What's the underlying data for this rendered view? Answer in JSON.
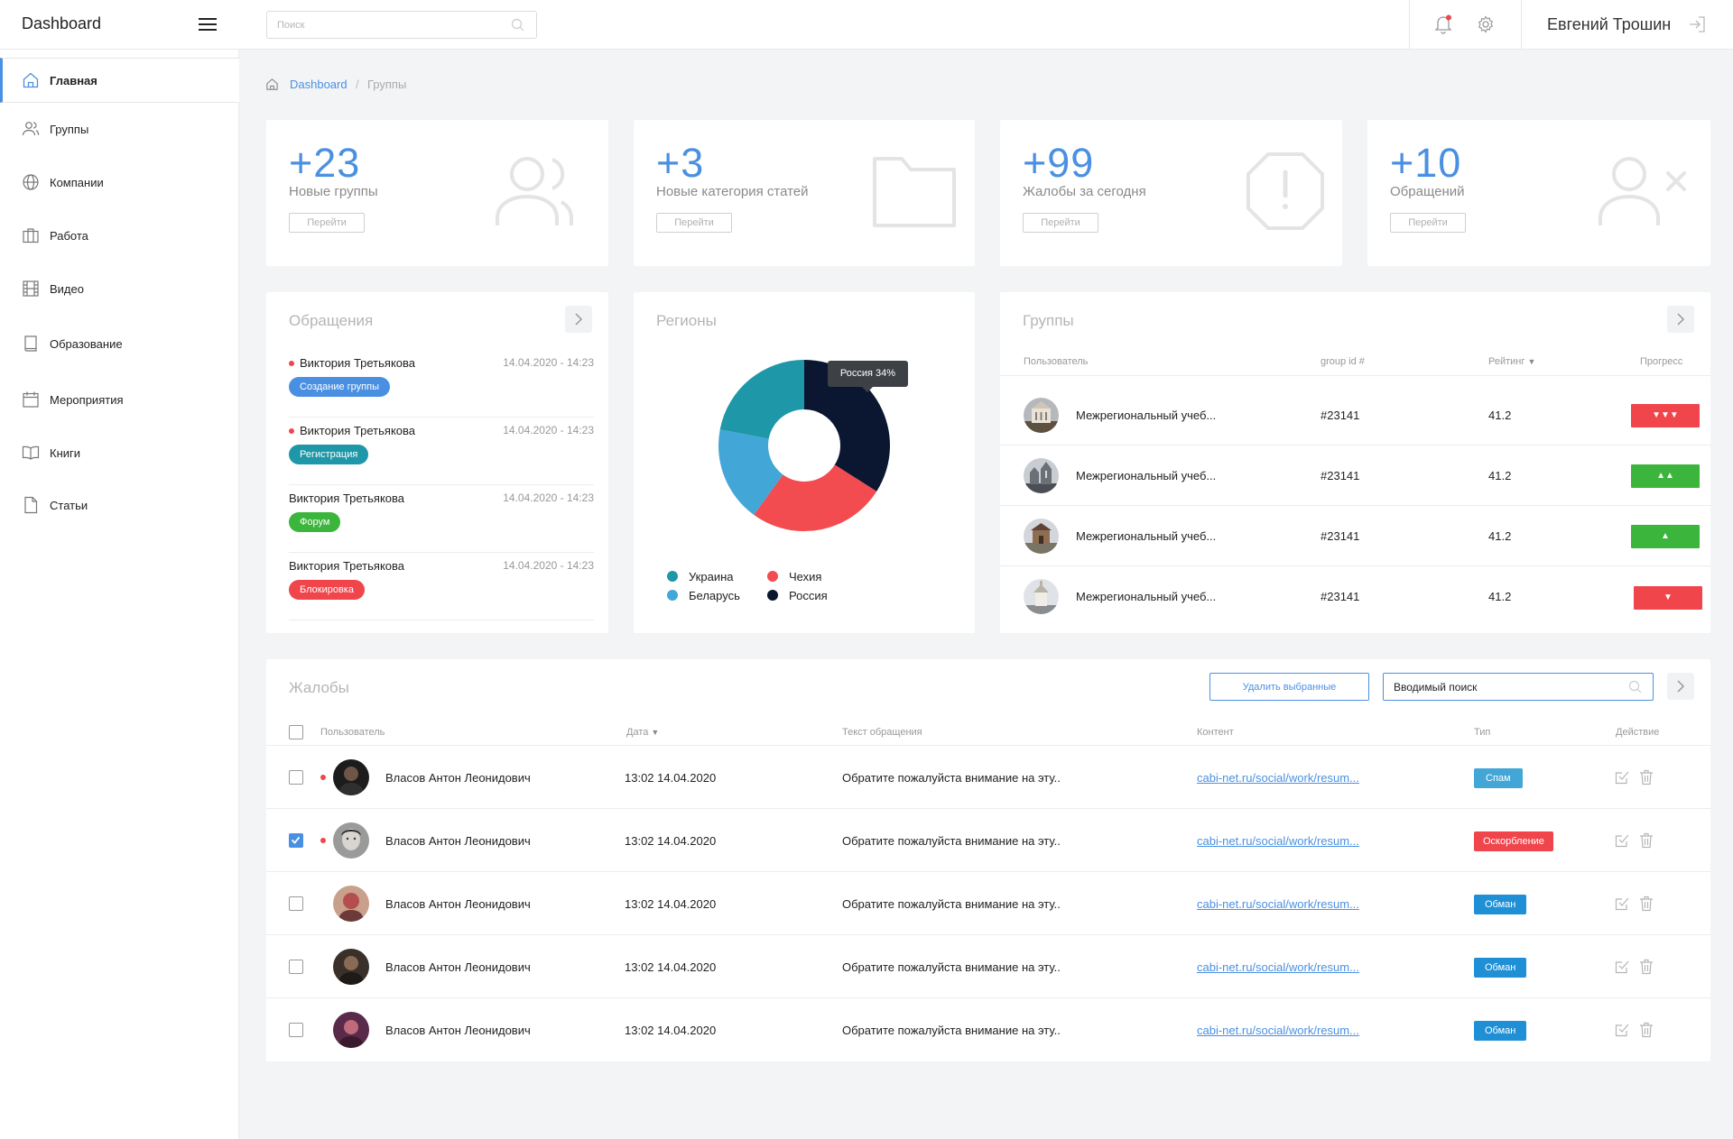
{
  "app": {
    "title": "Dashboard"
  },
  "header": {
    "search_placeholder": "Поиск",
    "user_name": "Евгений Трошин",
    "icons": [
      "menu-icon",
      "search-icon",
      "bell-icon",
      "gear-icon",
      "logout-icon"
    ],
    "notification_color": "#f0454b"
  },
  "sidebar": {
    "items": [
      {
        "label": "Главная",
        "icon": "home-icon",
        "active": true
      },
      {
        "label": "Группы",
        "icon": "users-icon"
      },
      {
        "label": "Компании",
        "icon": "globe-icon"
      },
      {
        "label": "Работа",
        "icon": "briefcase-icon"
      },
      {
        "label": "Видео",
        "icon": "film-icon"
      },
      {
        "label": "Образование",
        "icon": "book-icon"
      },
      {
        "label": "Мероприятия",
        "icon": "calendar-icon"
      },
      {
        "label": "Книги",
        "icon": "open-book-icon"
      },
      {
        "label": "Статьи",
        "icon": "file-icon"
      }
    ]
  },
  "breadcrumb": {
    "home": "Dashboard",
    "separator": "/",
    "current": "Группы"
  },
  "stats": [
    {
      "value": "+23",
      "label": "Новые группы",
      "button": "Перейти",
      "icon": "users-icon"
    },
    {
      "value": "+3",
      "label": "Новые категория статей",
      "button": "Перейти",
      "icon": "folder-icon"
    },
    {
      "value": "+99",
      "label": "Жалобы за сегодня",
      "button": "Перейти",
      "icon": "alert-octagon-icon"
    },
    {
      "value": "+10",
      "label": "Обращений",
      "button": "Перейти",
      "icon": "user-x-icon"
    }
  ],
  "appeals": {
    "title": "Обращения",
    "items": [
      {
        "name": "Виктория Третьякова",
        "time": "14.04.2020 - 14:23",
        "tag": "Создание группы",
        "tag_color": "#4a90e2",
        "unread": true
      },
      {
        "name": "Виктория Третьякова",
        "time": "14.04.2020 - 14:23",
        "tag": "Регистрация",
        "tag_color": "#1e97a8",
        "unread": true
      },
      {
        "name": "Виктория Третьякова",
        "time": "14.04.2020 - 14:23",
        "tag": "Форум",
        "tag_color": "#3bb53b",
        "unread": false
      },
      {
        "name": "Виктория Третьякова",
        "time": "14.04.2020 - 14:23",
        "tag": "Блокировка",
        "tag_color": "#f0454b",
        "unread": false
      }
    ]
  },
  "regions": {
    "title": "Регионы",
    "tooltip": "Россия 34%"
  },
  "chart_data": {
    "type": "pie",
    "title": "Регионы",
    "donut": true,
    "legend_position": "bottom",
    "series": [
      {
        "name": "Россия",
        "value": 34,
        "color": "#0b1730"
      },
      {
        "name": "Чехия",
        "value": 26,
        "color": "#f24b50"
      },
      {
        "name": "Беларусь",
        "value": 18,
        "color": "#42a6d6"
      },
      {
        "name": "Украина",
        "value": 22,
        "color": "#1e97a8"
      }
    ],
    "legend": [
      {
        "name": "Украина",
        "color": "#1e97a8"
      },
      {
        "name": "Чехия",
        "color": "#f24b50"
      },
      {
        "name": "Беларусь",
        "color": "#42a6d6"
      },
      {
        "name": "Россия",
        "color": "#0b1730"
      }
    ]
  },
  "groups": {
    "title": "Группы",
    "columns": {
      "user": "Пользователь",
      "group_id": "group id #",
      "rating": "Рейтинг",
      "progress": "Прогресс"
    },
    "rows": [
      {
        "name": "Межрегиональный учеб...",
        "group_id": "#23141",
        "rating": "41.2",
        "progress": "▼▼▼",
        "progress_color": "#f0454b"
      },
      {
        "name": "Межрегиональный учеб...",
        "group_id": "#23141",
        "rating": "41.2",
        "progress": "▲▲",
        "progress_color": "#3bb53b"
      },
      {
        "name": "Межрегиональный учеб...",
        "group_id": "#23141",
        "rating": "41.2",
        "progress": "▲",
        "progress_color": "#3bb53b"
      },
      {
        "name": "Межрегиональный учеб...",
        "group_id": "#23141",
        "rating": "41.2",
        "progress": "▼",
        "progress_color": "#f0454b"
      }
    ]
  },
  "complaints": {
    "title": "Жалобы",
    "delete_button": "Удалить выбранные",
    "search_value": "Вводимый поиск",
    "columns": {
      "user": "Пользователь",
      "date": "Дата",
      "text": "Текст обращения",
      "content": "Контент",
      "type": "Тип",
      "action": "Действие"
    },
    "rows": [
      {
        "name": "Власов Антон Леонидович",
        "date": "13:02  14.04.2020",
        "text": "Обратите пожалуйста внимание на эту..",
        "link": "cabi-net.ru/social/work/resum...",
        "type": "Спам",
        "type_color": "#42a6d6",
        "checked": false,
        "unread": true
      },
      {
        "name": "Власов Антон Леонидович",
        "date": "13:02  14.04.2020",
        "text": "Обратите пожалуйста внимание на эту..",
        "link": "cabi-net.ru/social/work/resum...",
        "type": "Оскорбление",
        "type_color": "#f0454b",
        "checked": true,
        "unread": true
      },
      {
        "name": "Власов Антон Леонидович",
        "date": "13:02  14.04.2020",
        "text": "Обратите пожалуйста внимание на эту..",
        "link": "cabi-net.ru/social/work/resum...",
        "type": "Обман",
        "type_color": "#1f8fd6",
        "checked": false,
        "unread": false
      },
      {
        "name": "Власов Антон Леонидович",
        "date": "13:02  14.04.2020",
        "text": "Обратите пожалуйста внимание на эту..",
        "link": "cabi-net.ru/social/work/resum...",
        "type": "Обман",
        "type_color": "#1f8fd6",
        "checked": false,
        "unread": false
      },
      {
        "name": "Власов Антон Леонидович",
        "date": "13:02  14.04.2020",
        "text": "Обратите пожалуйста внимание на эту..",
        "link": "cabi-net.ru/social/work/resum...",
        "type": "Обман",
        "type_color": "#1f8fd6",
        "checked": false,
        "unread": false
      }
    ]
  }
}
